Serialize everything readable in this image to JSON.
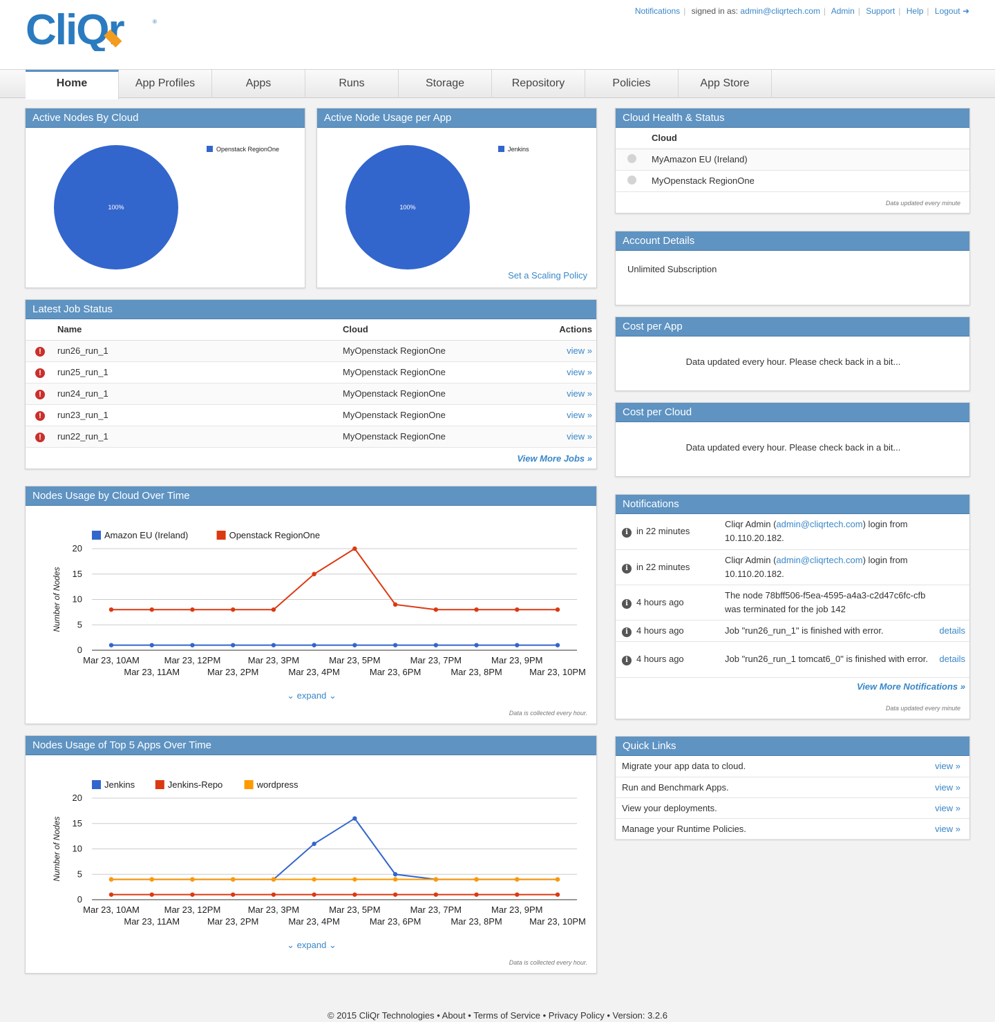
{
  "brand": {
    "logo_text": "CliQr",
    "registered": "®"
  },
  "toplinks": {
    "notifications": "Notifications",
    "signed_in_label": "signed in as:",
    "user_email": "admin@cliqrtech.com",
    "admin": "Admin",
    "support": "Support",
    "help": "Help",
    "logout": "Logout"
  },
  "nav": {
    "tabs": [
      "Home",
      "App Profiles",
      "Apps",
      "Runs",
      "Storage",
      "Repository",
      "Policies",
      "App Store"
    ],
    "active": "Home"
  },
  "active_nodes_by_cloud": {
    "title": "Active Nodes By Cloud",
    "legend": "Openstack RegionOne",
    "slice_label": "100%",
    "color": "#3366cc"
  },
  "active_node_usage": {
    "title": "Active Node Usage per App",
    "legend": "Jenkins",
    "slice_label": "100%",
    "link": "Set a Scaling Policy"
  },
  "jobs": {
    "title": "Latest Job Status",
    "headers": {
      "name": "Name",
      "cloud": "Cloud",
      "actions": "Actions"
    },
    "rows": [
      {
        "name": "run26_run_1",
        "cloud": "MyOpenstack RegionOne",
        "action": "view »"
      },
      {
        "name": "run25_run_1",
        "cloud": "MyOpenstack RegionOne",
        "action": "view »"
      },
      {
        "name": "run24_run_1",
        "cloud": "MyOpenstack RegionOne",
        "action": "view »"
      },
      {
        "name": "run23_run_1",
        "cloud": "MyOpenstack RegionOne",
        "action": "view »"
      },
      {
        "name": "run22_run_1",
        "cloud": "MyOpenstack RegionOne",
        "action": "view »"
      }
    ],
    "more": "View More Jobs »"
  },
  "cloud_health": {
    "title": "Cloud Health & Status",
    "header": "Cloud",
    "rows": [
      "MyAmazon EU (Ireland)",
      "MyOpenstack RegionOne"
    ],
    "note": "Data updated every minute"
  },
  "account": {
    "title": "Account Details",
    "text": "Unlimited Subscription"
  },
  "cost_app": {
    "title": "Cost per App",
    "text": "Data updated every hour. Please check back in a bit..."
  },
  "cost_cloud": {
    "title": "Cost per Cloud",
    "text": "Data updated every hour. Please check back in a bit..."
  },
  "notifications": {
    "title": "Notifications",
    "items": [
      {
        "time": "in 22 minutes",
        "pre": "Cliqr Admin (",
        "email": "admin@cliqrtech.com",
        "post": ") login from 10.110.20.182.",
        "action": ""
      },
      {
        "time": "in 22 minutes",
        "pre": "Cliqr Admin (",
        "email": "admin@cliqrtech.com",
        "post": ") login from 10.110.20.182.",
        "action": ""
      },
      {
        "time": "4 hours ago",
        "pre": "The node 78bff506-f5ea-4595-a4a3-c2d47c6fc-cfb was terminated for the job 142",
        "email": "",
        "post": "",
        "action": ""
      },
      {
        "time": "4 hours ago",
        "pre": "Job \"run26_run_1\" is finished with error.",
        "email": "",
        "post": "",
        "action": "details"
      },
      {
        "time": "4 hours ago",
        "pre": "Job \"run26_run_1 tomcat6_0\" is finished with error.",
        "email": "",
        "post": "",
        "action": "details"
      }
    ],
    "more": "View More Notifications »",
    "note": "Data updated every minute"
  },
  "quick_links": {
    "title": "Quick Links",
    "items": [
      {
        "text": "Migrate your app data to cloud.",
        "action": "view »"
      },
      {
        "text": "Run and Benchmark Apps.",
        "action": "view »"
      },
      {
        "text": "View your deployments.",
        "action": "view »"
      },
      {
        "text": "Manage your Runtime Policies.",
        "action": "view »"
      }
    ]
  },
  "charts": {
    "cloud": {
      "title": "Nodes Usage by Cloud Over Time",
      "expand": "expand",
      "note": "Data is collected every hour."
    },
    "apps": {
      "title": "Nodes Usage of Top 5 Apps Over Time",
      "expand": "expand",
      "note": "Data is collected every hour."
    }
  },
  "chart_data": [
    {
      "type": "pie",
      "title": "Active Nodes By Cloud",
      "categories": [
        "Openstack RegionOne"
      ],
      "values": [
        100
      ]
    },
    {
      "type": "pie",
      "title": "Active Node Usage per App",
      "categories": [
        "Jenkins"
      ],
      "values": [
        100
      ]
    },
    {
      "type": "line",
      "title": "Nodes Usage by Cloud Over Time",
      "ylabel": "Number of Nodes",
      "ylim": [
        0,
        20
      ],
      "yticks": [
        0,
        5,
        10,
        15,
        20
      ],
      "x": [
        "Mar 23, 10AM",
        "Mar 23, 11AM",
        "Mar 23, 12PM",
        "Mar 23, 2PM",
        "Mar 23, 3PM",
        "Mar 23, 4PM",
        "Mar 23, 5PM",
        "Mar 23, 6PM",
        "Mar 23, 7PM",
        "Mar 23, 8PM",
        "Mar 23, 9PM",
        "Mar 23, 10PM"
      ],
      "series": [
        {
          "name": "Amazon EU (Ireland)",
          "color": "#3366cc",
          "values": [
            1,
            1,
            1,
            1,
            1,
            1,
            1,
            1,
            1,
            1,
            1,
            1
          ]
        },
        {
          "name": "Openstack RegionOne",
          "color": "#dc3912",
          "values": [
            8,
            8,
            8,
            8,
            8,
            15,
            20,
            9,
            8,
            8,
            8,
            8
          ]
        }
      ]
    },
    {
      "type": "line",
      "title": "Nodes Usage of Top 5 Apps Over Time",
      "ylabel": "Number of Nodes",
      "ylim": [
        0,
        20
      ],
      "yticks": [
        0,
        5,
        10,
        15,
        20
      ],
      "x": [
        "Mar 23, 10AM",
        "Mar 23, 11AM",
        "Mar 23, 12PM",
        "Mar 23, 2PM",
        "Mar 23, 3PM",
        "Mar 23, 4PM",
        "Mar 23, 5PM",
        "Mar 23, 6PM",
        "Mar 23, 7PM",
        "Mar 23, 8PM",
        "Mar 23, 9PM",
        "Mar 23, 10PM"
      ],
      "series": [
        {
          "name": "Jenkins",
          "color": "#3366cc",
          "values": [
            4,
            4,
            4,
            4,
            4,
            11,
            16,
            5,
            4,
            4,
            4,
            4
          ]
        },
        {
          "name": "Jenkins-Repo",
          "color": "#dc3912",
          "values": [
            1,
            1,
            1,
            1,
            1,
            1,
            1,
            1,
            1,
            1,
            1,
            1
          ]
        },
        {
          "name": "wordpress",
          "color": "#ff9900",
          "values": [
            4,
            4,
            4,
            4,
            4,
            4,
            4,
            4,
            4,
            4,
            4,
            4
          ]
        }
      ]
    }
  ],
  "footer": {
    "copyright": "© 2015 CliQr Technologies",
    "about": "About",
    "tos": "Terms of Service",
    "privacy": "Privacy Policy",
    "version": "Version: 3.2.6"
  }
}
